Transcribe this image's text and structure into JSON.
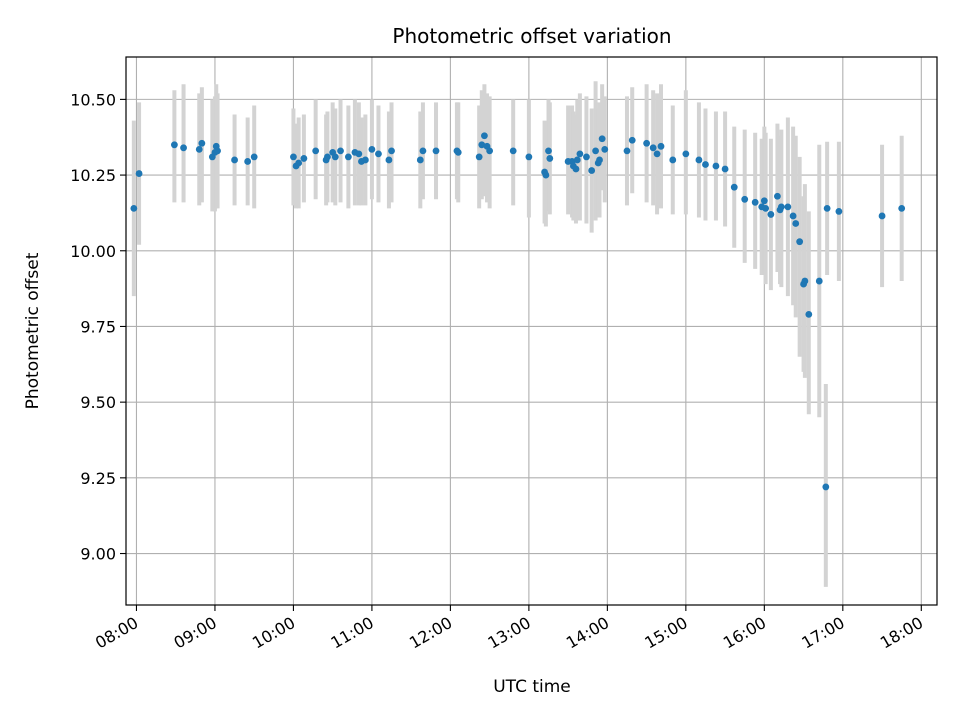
{
  "chart_data": {
    "type": "scatter",
    "title": "Photometric offset variation",
    "xlabel": "UTC time",
    "ylabel": "Photometric offset",
    "x_tick_labels": [
      "08:00",
      "09:00",
      "10:00",
      "11:00",
      "12:00",
      "13:00",
      "14:00",
      "15:00",
      "16:00",
      "17:00",
      "18:00"
    ],
    "y_tick_labels": [
      "9.00",
      "9.25",
      "9.50",
      "9.75",
      "10.00",
      "10.25",
      "10.50"
    ],
    "xlim": [
      "07:52",
      "18:12"
    ],
    "ylim": [
      8.83,
      10.64
    ],
    "grid": true,
    "colors": {
      "marker": "#1f77b4",
      "errorbar": "#d3d3d3",
      "grid": "#b0b0b0"
    },
    "series": [
      {
        "x": [
          "07:58",
          "08:02",
          "08:29",
          "08:36",
          "08:48",
          "08:50",
          "08:58",
          "09:00",
          "09:01",
          "09:02",
          "09:15",
          "09:25",
          "09:30",
          "10:00",
          "10:02",
          "10:04",
          "10:08",
          "10:17",
          "10:25",
          "10:26",
          "10:30",
          "10:32",
          "10:36",
          "10:42",
          "10:47",
          "10:50",
          "10:52",
          "10:55",
          "11:00",
          "11:05",
          "11:13",
          "11:15",
          "11:37",
          "11:39",
          "11:49",
          "12:05",
          "12:06",
          "12:22",
          "12:24",
          "12:26",
          "12:28",
          "12:30",
          "12:48",
          "13:00",
          "13:12",
          "13:13",
          "13:15",
          "13:16",
          "13:30",
          "13:33",
          "13:34",
          "13:36",
          "13:37",
          "13:39",
          "13:44",
          "13:48",
          "13:51",
          "13:53",
          "13:54",
          "13:56",
          "13:58",
          "14:15",
          "14:19",
          "14:30",
          "14:35",
          "14:38",
          "14:41",
          "14:50",
          "15:00",
          "15:10",
          "15:15",
          "15:23",
          "15:30",
          "15:37",
          "15:45",
          "15:53",
          "15:58",
          "16:00",
          "16:01",
          "16:05",
          "16:10",
          "16:12",
          "16:13",
          "16:18",
          "16:22",
          "16:24",
          "16:27",
          "16:30",
          "16:31",
          "16:34",
          "16:42",
          "16:47",
          "16:48",
          "16:57",
          "17:30",
          "17:45"
        ],
        "y": [
          10.14,
          10.255,
          10.35,
          10.34,
          10.335,
          10.355,
          10.31,
          10.325,
          10.345,
          10.33,
          10.3,
          10.295,
          10.31,
          10.31,
          10.28,
          10.29,
          10.305,
          10.33,
          10.3,
          10.31,
          10.325,
          10.31,
          10.33,
          10.31,
          10.325,
          10.32,
          10.295,
          10.3,
          10.335,
          10.32,
          10.3,
          10.33,
          10.3,
          10.33,
          10.33,
          10.33,
          10.325,
          10.31,
          10.35,
          10.38,
          10.345,
          10.33,
          10.33,
          10.31,
          10.26,
          10.25,
          10.33,
          10.305,
          10.295,
          10.295,
          10.28,
          10.27,
          10.3,
          10.32,
          10.31,
          10.265,
          10.33,
          10.29,
          10.3,
          10.37,
          10.335,
          10.33,
          10.365,
          10.355,
          10.34,
          10.32,
          10.345,
          10.3,
          10.32,
          10.3,
          10.285,
          10.28,
          10.27,
          10.21,
          10.17,
          10.16,
          10.145,
          10.165,
          10.14,
          10.12,
          10.18,
          10.135,
          10.145,
          10.145,
          10.115,
          10.09,
          10.03,
          9.89,
          9.9,
          9.79,
          9.9,
          9.22,
          10.14,
          10.13,
          10.115,
          10.14
        ],
        "yerr_low": [
          9.85,
          10.02,
          10.16,
          10.16,
          10.15,
          10.16,
          10.13,
          10.13,
          10.14,
          10.14,
          10.15,
          10.15,
          10.14,
          10.15,
          10.14,
          10.14,
          10.16,
          10.17,
          10.15,
          10.16,
          10.16,
          10.15,
          10.16,
          10.14,
          10.15,
          10.15,
          10.15,
          10.15,
          10.17,
          10.16,
          10.14,
          10.16,
          10.14,
          10.17,
          10.17,
          10.17,
          10.16,
          10.14,
          10.17,
          10.18,
          10.16,
          10.14,
          10.15,
          10.11,
          10.09,
          10.08,
          10.13,
          10.12,
          10.12,
          10.11,
          10.1,
          10.09,
          10.1,
          10.1,
          10.09,
          10.06,
          10.1,
          10.11,
          10.11,
          10.2,
          10.16,
          10.15,
          10.19,
          10.16,
          10.15,
          10.12,
          10.14,
          10.12,
          10.12,
          10.11,
          10.1,
          10.1,
          10.08,
          10.01,
          9.96,
          9.94,
          9.92,
          9.92,
          9.89,
          9.87,
          9.93,
          9.89,
          9.88,
          9.85,
          9.82,
          9.78,
          9.65,
          9.6,
          9.58,
          9.46,
          9.45,
          8.89,
          9.92,
          9.9,
          9.88,
          9.9
        ],
        "yerr_high": [
          10.43,
          10.49,
          10.53,
          10.55,
          10.52,
          10.54,
          10.5,
          10.51,
          10.55,
          10.52,
          10.45,
          10.44,
          10.48,
          10.47,
          10.42,
          10.44,
          10.45,
          10.5,
          10.45,
          10.46,
          10.49,
          10.47,
          10.5,
          10.48,
          10.5,
          10.49,
          10.44,
          10.45,
          10.5,
          10.48,
          10.46,
          10.49,
          10.46,
          10.49,
          10.49,
          10.49,
          10.49,
          10.48,
          10.53,
          10.55,
          10.52,
          10.51,
          10.5,
          10.5,
          10.43,
          10.42,
          10.5,
          10.49,
          10.48,
          10.48,
          10.46,
          10.45,
          10.5,
          10.52,
          10.51,
          10.47,
          10.56,
          10.47,
          10.49,
          10.55,
          10.51,
          10.51,
          10.54,
          10.55,
          10.53,
          10.52,
          10.55,
          10.48,
          10.53,
          10.49,
          10.47,
          10.46,
          10.46,
          10.41,
          10.4,
          10.39,
          10.37,
          10.41,
          10.39,
          10.37,
          10.42,
          10.38,
          10.4,
          10.44,
          10.41,
          10.38,
          10.31,
          10.18,
          10.22,
          10.13,
          10.35,
          9.56,
          10.36,
          10.36,
          10.35,
          10.38
        ]
      }
    ]
  }
}
